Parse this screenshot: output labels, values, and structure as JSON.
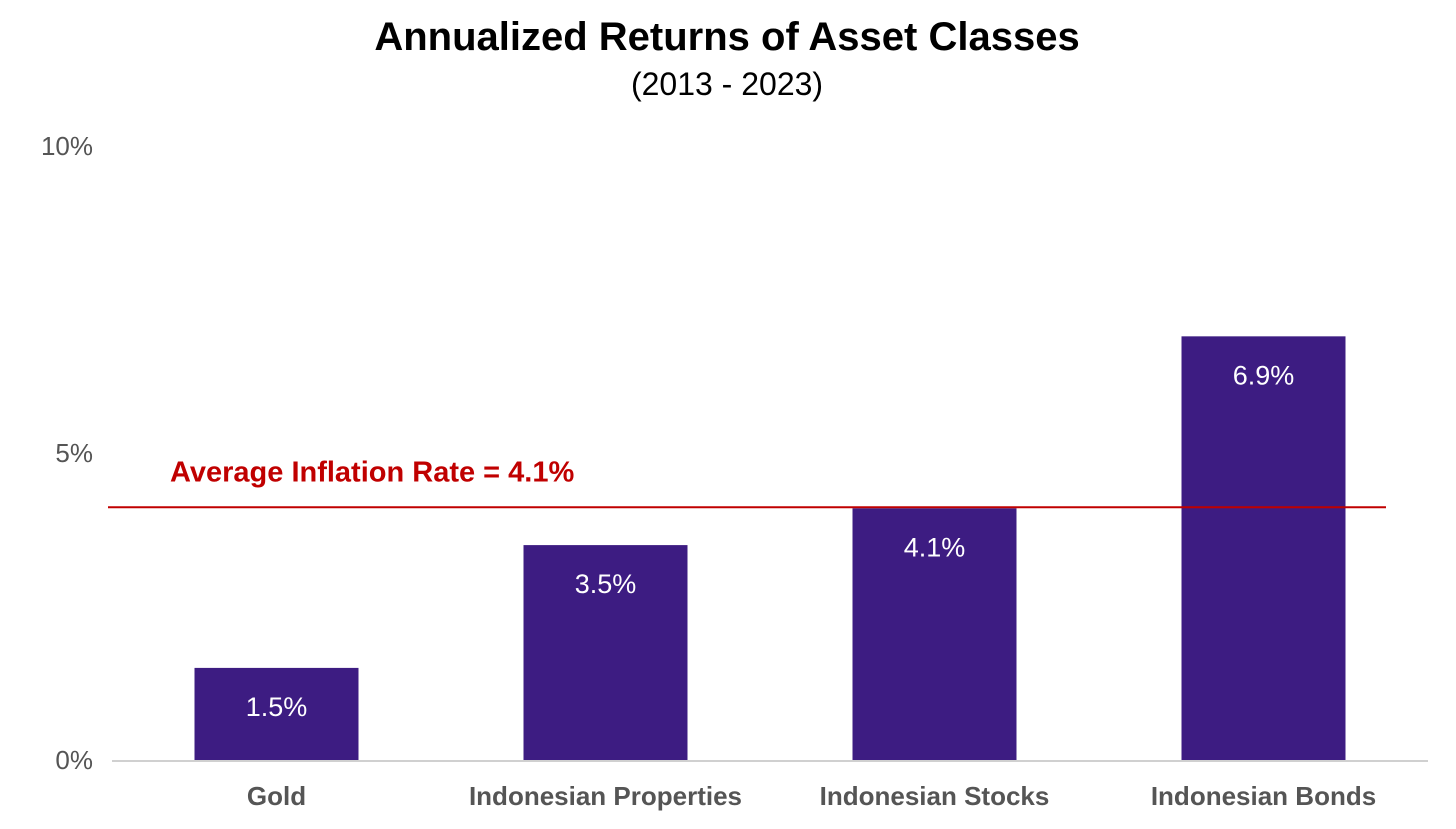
{
  "chart_data": {
    "type": "bar",
    "title": "Annualized Returns of Asset Classes",
    "subtitle": "(2013 - 2023)",
    "categories": [
      "Gold",
      "Indonesian Properties",
      "Indonesian Stocks",
      "Indonesian Bonds"
    ],
    "values": [
      1.5,
      3.5,
      4.1,
      6.9
    ],
    "data_labels": [
      "1.5%",
      "3.5%",
      "4.1%",
      "6.9%"
    ],
    "ylim": [
      0,
      10
    ],
    "yticks": [
      0,
      5,
      10
    ],
    "ytick_labels": [
      "0%",
      "5%",
      "10%"
    ],
    "xlabel": "",
    "ylabel": "",
    "grid": false,
    "legend": "none",
    "bar_color": "#3d1c82",
    "reference_line": {
      "value": 4.1,
      "label": "Average Inflation Rate = 4.1%",
      "color": "#c00000"
    }
  }
}
